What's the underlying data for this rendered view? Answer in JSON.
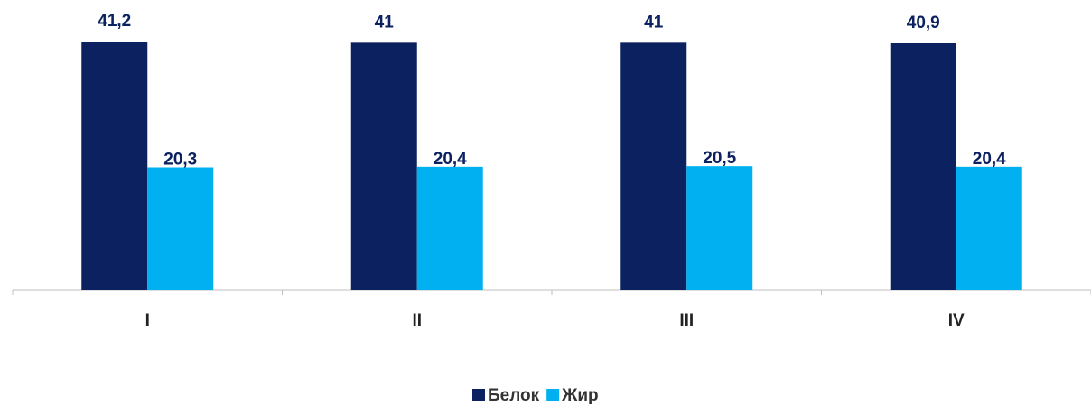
{
  "chart_data": {
    "type": "bar",
    "categories": [
      "I",
      "II",
      "III",
      "IV"
    ],
    "series": [
      {
        "name": "Белок",
        "color": "#0b2160",
        "values": [
          41.2,
          41,
          41,
          40.9
        ],
        "value_labels": [
          "41,2",
          "41",
          "41",
          "40,9"
        ]
      },
      {
        "name": "Жир",
        "color": "#00b0f0",
        "values": [
          20.3,
          20.4,
          20.5,
          20.4
        ],
        "value_labels": [
          "20,3",
          "20,4",
          "20,5",
          "20,4"
        ]
      }
    ],
    "legend": "bottom"
  }
}
